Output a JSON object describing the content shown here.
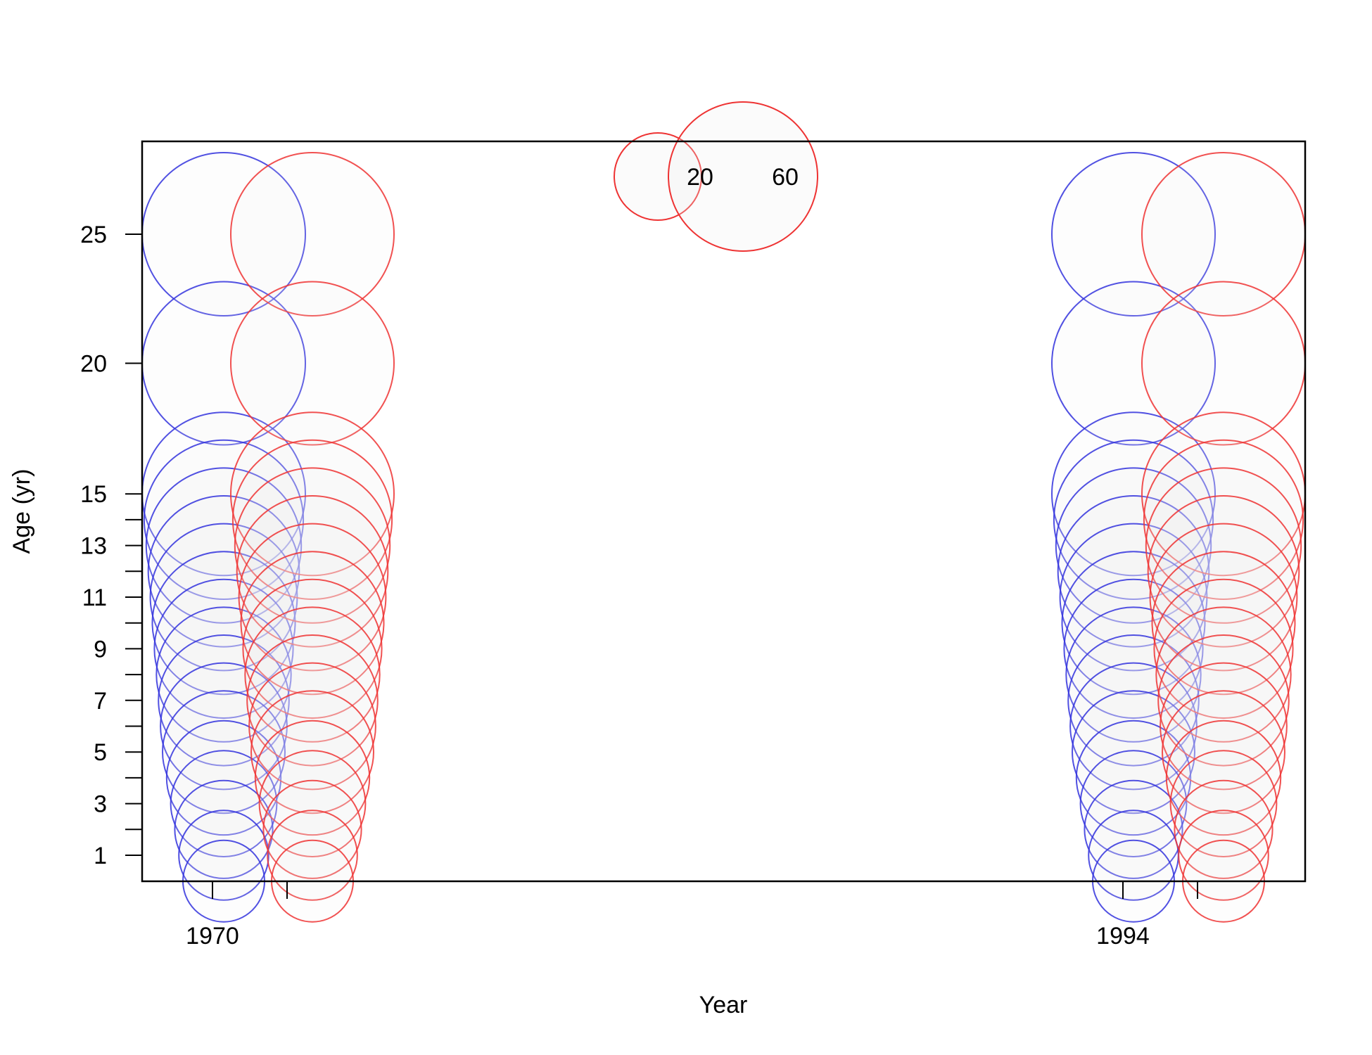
{
  "chart_data": {
    "type": "scatter",
    "subtype": "bubble",
    "title": "",
    "xlabel": "Year",
    "ylabel": "Age (yr)",
    "x_tick_labels": [
      "1970",
      "1994"
    ],
    "y_tick_labels": [
      "1",
      "3",
      "5",
      "7",
      "9",
      "11",
      "13",
      "15",
      "20",
      "25"
    ],
    "y_minor_ticks": [
      2,
      4,
      6,
      8,
      10,
      12,
      14
    ],
    "grid": false,
    "legend": {
      "position": "top-center",
      "labels": [
        "20",
        "60"
      ],
      "values": [
        20,
        60
      ]
    },
    "colors": {
      "series_a": "#3333dd",
      "series_b": "#ee3333",
      "fill": "#eeeeee"
    },
    "series": [
      {
        "color": "#3333dd",
        "points": [
          {
            "year": "1970",
            "ages": [
              25,
              20,
              15,
              14,
              13,
              12,
              11,
              10,
              9,
              8,
              7,
              6,
              5,
              4,
              3,
              2,
              1,
              0
            ],
            "sizes": [
              80,
              80,
              80,
              78,
              76,
              74,
              72,
              70,
              68,
              66,
              64,
              62,
              60,
              56,
              52,
              48,
              44,
              40
            ]
          },
          {
            "year": "1994",
            "ages": [
              25,
              20,
              15,
              14,
              13,
              12,
              11,
              10,
              9,
              8,
              7,
              6,
              5,
              4,
              3,
              2,
              1,
              0
            ],
            "sizes": [
              80,
              80,
              80,
              78,
              76,
              74,
              72,
              70,
              68,
              66,
              64,
              62,
              60,
              56,
              52,
              48,
              44,
              40
            ]
          }
        ]
      },
      {
        "color": "#ee3333",
        "points": [
          {
            "year": "1970",
            "ages": [
              25,
              20,
              15,
              14,
              13,
              12,
              11,
              10,
              9,
              8,
              7,
              6,
              5,
              4,
              3,
              2,
              1,
              0
            ],
            "sizes": [
              80,
              80,
              80,
              78,
              76,
              74,
              72,
              70,
              68,
              66,
              64,
              62,
              60,
              56,
              52,
              48,
              44,
              40
            ]
          },
          {
            "year": "1994",
            "ages": [
              25,
              20,
              15,
              14,
              13,
              12,
              11,
              10,
              9,
              8,
              7,
              6,
              5,
              4,
              3,
              2,
              1,
              0
            ],
            "sizes": [
              80,
              80,
              80,
              78,
              76,
              74,
              72,
              70,
              68,
              66,
              64,
              62,
              60,
              56,
              52,
              48,
              44,
              40
            ]
          }
        ]
      }
    ]
  }
}
